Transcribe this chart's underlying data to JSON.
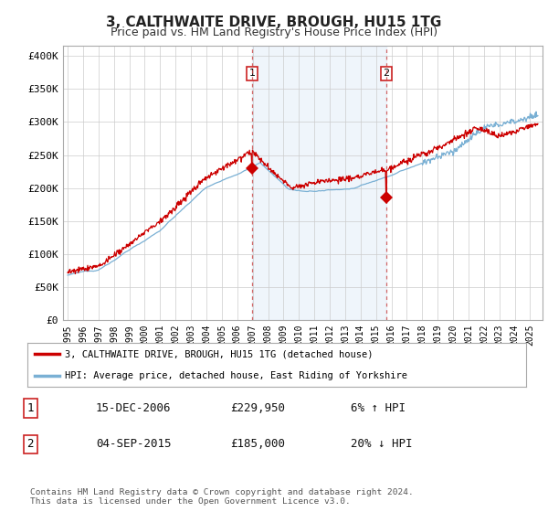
{
  "title": "3, CALTHWAITE DRIVE, BROUGH, HU15 1TG",
  "subtitle": "Price paid vs. HM Land Registry's House Price Index (HPI)",
  "title_fontsize": 11,
  "subtitle_fontsize": 9,
  "ylabel_values": [
    "£0",
    "£50K",
    "£100K",
    "£150K",
    "£200K",
    "£250K",
    "£300K",
    "£350K",
    "£400K"
  ],
  "yticks": [
    0,
    50000,
    100000,
    150000,
    200000,
    250000,
    300000,
    350000,
    400000
  ],
  "ylim": [
    0,
    415000
  ],
  "xlim_start": 1994.7,
  "xlim_end": 2025.8,
  "hpi_color": "#7ab0d4",
  "price_color": "#cc0000",
  "transaction1_date_num": 2006.96,
  "transaction1_price": 229950,
  "transaction1_label": "1",
  "transaction2_date_num": 2015.67,
  "transaction2_price": 185000,
  "transaction2_label": "2",
  "shade_color": "#ddeeff",
  "legend_line1": "3, CALTHWAITE DRIVE, BROUGH, HU15 1TG (detached house)",
  "legend_line2": "HPI: Average price, detached house, East Riding of Yorkshire",
  "table_row1": [
    "1",
    "15-DEC-2006",
    "£229,950",
    "6% ↑ HPI"
  ],
  "table_row2": [
    "2",
    "04-SEP-2015",
    "£185,000",
    "20% ↓ HPI"
  ],
  "footer": "Contains HM Land Registry data © Crown copyright and database right 2024.\nThis data is licensed under the Open Government Licence v3.0.",
  "bg_color": "#ffffff",
  "plot_bg_color": "#ffffff",
  "grid_color": "#cccccc",
  "fig_bg": "#f0f0f0"
}
